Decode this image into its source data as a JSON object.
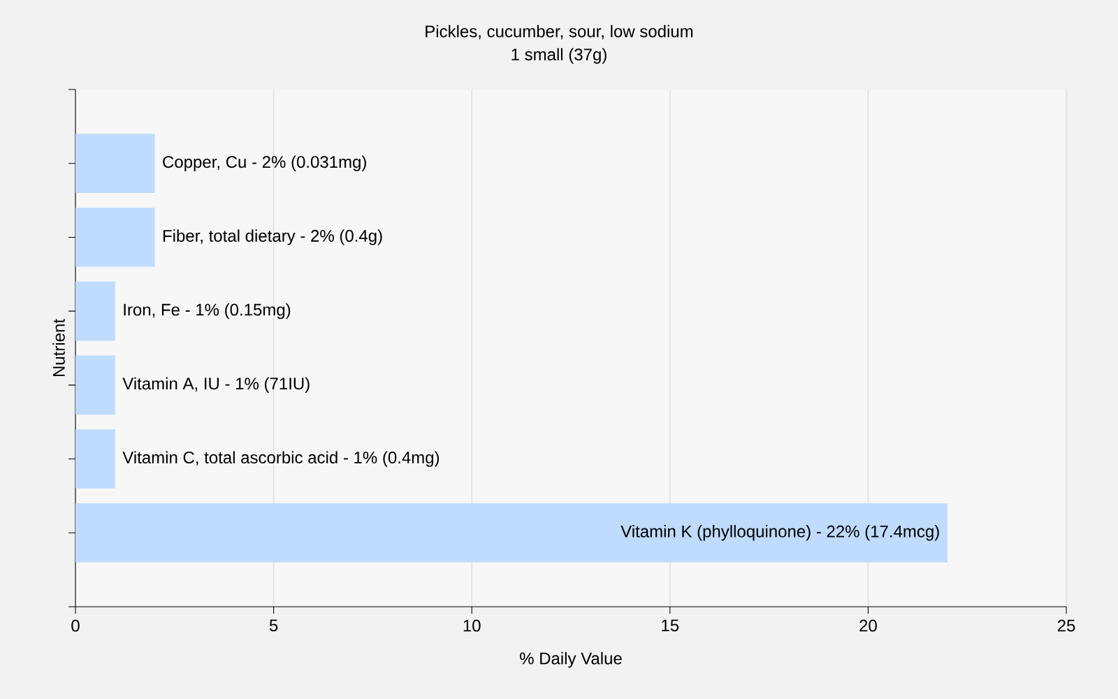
{
  "chart_data": {
    "type": "bar",
    "orientation": "horizontal",
    "title": "Pickles, cucumber, sour, low sodium",
    "subtitle": "1 small (37g)",
    "xlabel": "% Daily Value",
    "ylabel": "Nutrient",
    "categories": [
      "Copper, Cu - 2% (0.031mg)",
      "Fiber, total dietary - 2% (0.4g)",
      "Iron, Fe - 1% (0.15mg)",
      "Vitamin A, IU - 1% (71IU)",
      "Vitamin C, total ascorbic acid - 1% (0.4mg)",
      "Vitamin K (phylloquinone) - 22% (17.4mcg)"
    ],
    "values": [
      2,
      2,
      1,
      1,
      1,
      22
    ],
    "color": "#bfdbfe",
    "xlim": [
      0,
      25
    ],
    "xticks": [
      0,
      5,
      10,
      15,
      20,
      25
    ],
    "grid": "x"
  }
}
